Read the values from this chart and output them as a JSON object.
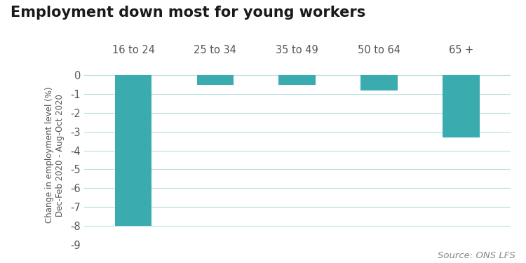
{
  "title": "Employment down most for young workers",
  "categories": [
    "16 to 24",
    "25 to 34",
    "35 to 49",
    "50 to 64",
    "65 +"
  ],
  "values": [
    -8.0,
    -0.5,
    -0.5,
    -0.8,
    -3.3
  ],
  "bar_color": "#3aacb0",
  "ylabel_line1": "Change in employment level (%)",
  "ylabel_line2": "Dec-Feb 2020 - Aug-Oct 2020",
  "ylim": [
    -9,
    0.5
  ],
  "yticks": [
    0,
    -1,
    -2,
    -3,
    -4,
    -5,
    -6,
    -7,
    -8,
    -9
  ],
  "source_text": "Source: ONS LFS",
  "background_color": "#ffffff",
  "title_fontsize": 15,
  "label_fontsize": 10.5,
  "tick_fontsize": 10.5,
  "source_fontsize": 9.5,
  "bar_width": 0.45,
  "grid_color": "#b8dde0",
  "text_color": "#555555"
}
